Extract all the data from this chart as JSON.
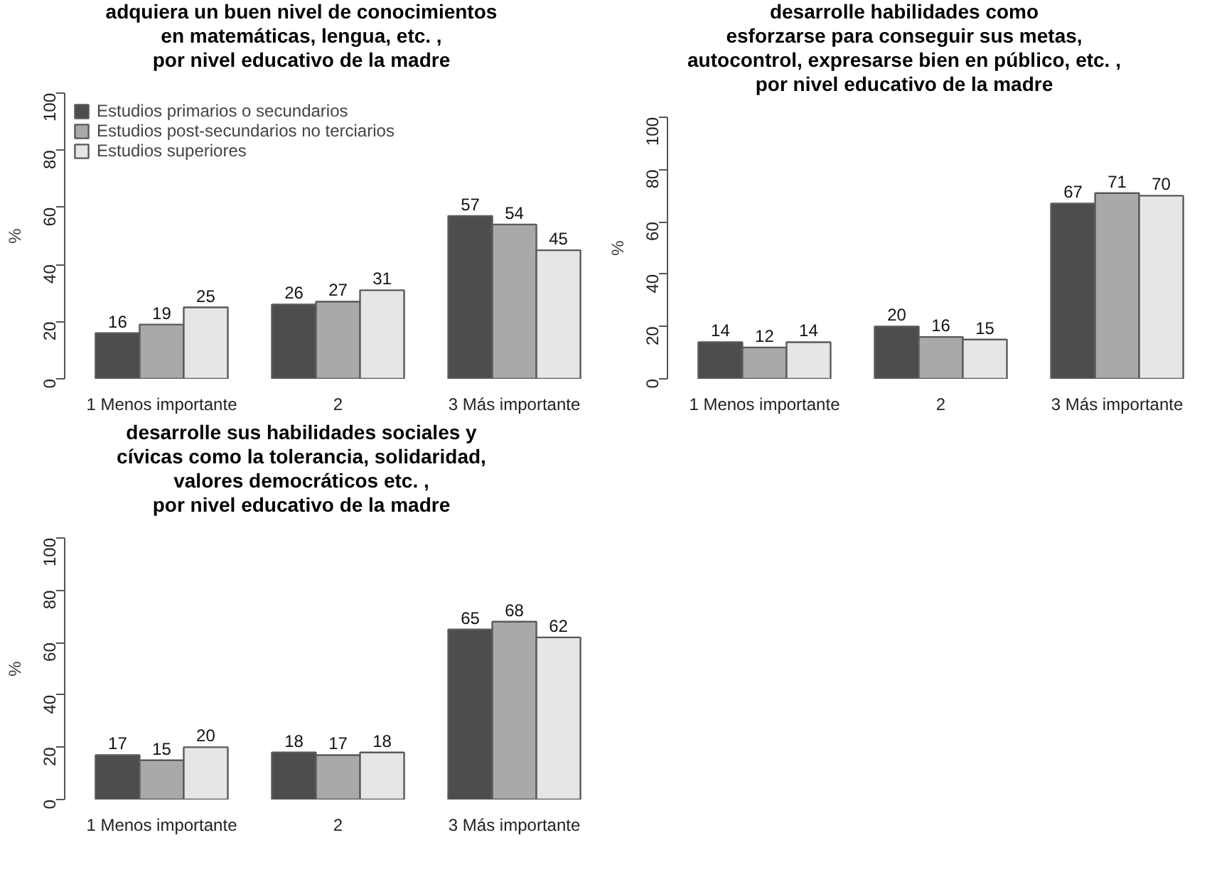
{
  "chart_data": [
    {
      "type": "bar",
      "title": "adquiera un buen nivel de conocimientos\nen matemáticas, lengua, etc. ,\npor nivel educativo de la madre",
      "ylabel": "%",
      "categories": [
        "1 Menos importante",
        "2",
        "3 Más importante"
      ],
      "series": [
        {
          "name": "Estudios primarios o secundarios",
          "color": "#4d4d4d",
          "values": [
            16,
            26,
            57
          ]
        },
        {
          "name": "Estudios post-secundarios no terciarios",
          "color": "#a9a9a9",
          "values": [
            19,
            27,
            54
          ]
        },
        {
          "name": "Estudios superiores",
          "color": "#e6e6e6",
          "values": [
            25,
            31,
            45
          ]
        }
      ],
      "ylim": [
        0,
        100
      ],
      "yticks": [
        0,
        20,
        40,
        60,
        80,
        100
      ],
      "data_labels": true,
      "legend": "top left",
      "grid": false
    },
    {
      "type": "bar",
      "title": "desarrolle habilidades como\nesforzarse para conseguir sus metas,\nautocontrol, expresarse bien en público, etc. ,\npor nivel educativo de la madre",
      "ylabel": "%",
      "categories": [
        "1 Menos importante",
        "2",
        "3 Más importante"
      ],
      "series": [
        {
          "color": "#4d4d4d",
          "values": [
            14,
            20,
            67
          ]
        },
        {
          "color": "#a9a9a9",
          "values": [
            12,
            16,
            71
          ]
        },
        {
          "color": "#e6e6e6",
          "values": [
            14,
            15,
            70
          ]
        }
      ],
      "ylim": [
        0,
        100
      ],
      "yticks": [
        0,
        20,
        40,
        60,
        80,
        100
      ],
      "data_labels": true,
      "grid": false
    },
    {
      "type": "bar",
      "title": "desarrolle sus habilidades sociales y\ncívicas como la tolerancia, solidaridad,\nvalores democráticos etc. ,\npor nivel educativo de la madre",
      "ylabel": "%",
      "categories": [
        "1 Menos importante",
        "2",
        "3 Más importante"
      ],
      "series": [
        {
          "color": "#4d4d4d",
          "values": [
            17,
            18,
            65
          ]
        },
        {
          "color": "#a9a9a9",
          "values": [
            15,
            17,
            68
          ]
        },
        {
          "color": "#e6e6e6",
          "values": [
            20,
            18,
            62
          ]
        }
      ],
      "ylim": [
        0,
        100
      ],
      "yticks": [
        0,
        20,
        40,
        60,
        80,
        100
      ],
      "data_labels": true,
      "grid": false
    }
  ]
}
